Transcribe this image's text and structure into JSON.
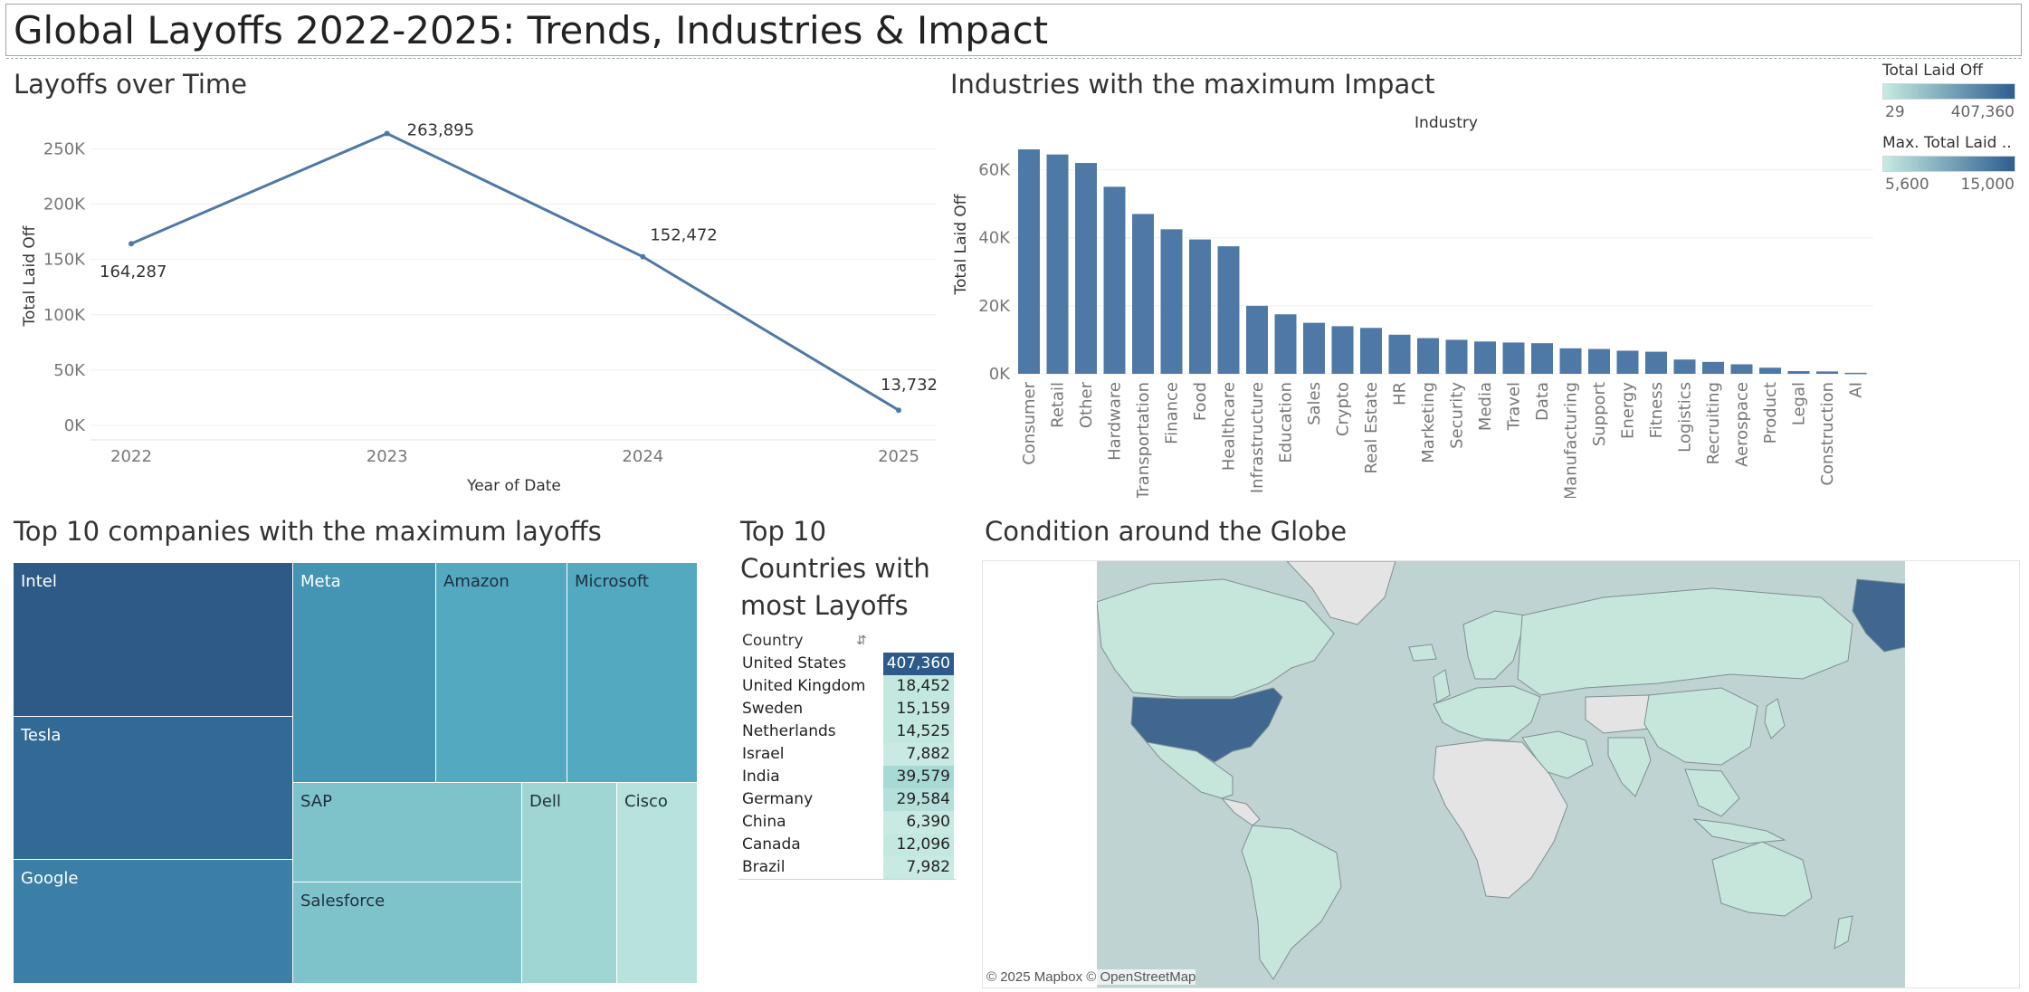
{
  "title": "Global Layoffs 2022-2025: Trends, Industries & Impact",
  "line_chart": {
    "section_title": "Layoffs over Time",
    "chart_data": {
      "type": "line",
      "xlabel": "Year of Date",
      "ylabel": "Total Laid Off",
      "x": [
        "2022",
        "2023",
        "2024",
        "2025"
      ],
      "values": [
        164287,
        263895,
        152472,
        13732
      ],
      "data_labels": [
        "164,287",
        "263,895",
        "152,472",
        "13,732"
      ],
      "y_ticks": [
        "0K",
        "50K",
        "100K",
        "150K",
        "200K",
        "250K"
      ],
      "ylim": [
        0,
        270000
      ],
      "color": "#4e79a7"
    }
  },
  "bar_chart": {
    "section_title": "Industries with the maximum Impact",
    "chart_data": {
      "type": "bar",
      "title": "Industry",
      "ylabel": "Total Laid Off",
      "categories": [
        "Consumer",
        "Retail",
        "Other",
        "Hardware",
        "Transportation",
        "Finance",
        "Food",
        "Healthcare",
        "Infrastructure",
        "Education",
        "Sales",
        "Crypto",
        "Real Estate",
        "HR",
        "Marketing",
        "Security",
        "Media",
        "Travel",
        "Data",
        "Manufacturing",
        "Support",
        "Energy",
        "Fitness",
        "Logistics",
        "Recruiting",
        "Aerospace",
        "Product",
        "Legal",
        "Construction",
        "AI"
      ],
      "values": [
        66000,
        64500,
        62000,
        55000,
        47000,
        42500,
        39500,
        37500,
        20000,
        17500,
        15000,
        14000,
        13500,
        11500,
        10500,
        10000,
        9500,
        9200,
        9000,
        7500,
        7300,
        6800,
        6500,
        4200,
        3500,
        2800,
        1800,
        800,
        700,
        300
      ],
      "y_ticks": [
        "0K",
        "20K",
        "40K",
        "60K"
      ],
      "ylim": [
        0,
        70000
      ],
      "color": "#4e79a7"
    }
  },
  "legend": {
    "total_title": "Total Laid Off",
    "total_min": "29",
    "total_max": "407,360",
    "max_title": "Max. Total Laid ..",
    "max_min": "5,600",
    "max_max": "15,000"
  },
  "treemap": {
    "section_title": "Top 10 companies with the maximum layoffs",
    "cells": [
      {
        "label": "Intel",
        "color": "#2e5a87",
        "text_color": "#ffffff"
      },
      {
        "label": "Tesla",
        "color": "#336a95",
        "text_color": "#ffffff"
      },
      {
        "label": "Google",
        "color": "#3b7ea6",
        "text_color": "#ffffff"
      },
      {
        "label": "Meta",
        "color": "#4494b3",
        "text_color": "#ffffff"
      },
      {
        "label": "Amazon",
        "color": "#52a9c0",
        "text_color": "#1f2f3d"
      },
      {
        "label": "Microsoft",
        "color": "#52a9c0",
        "text_color": "#1f2f3d"
      },
      {
        "label": "SAP",
        "color": "#7fc3ca",
        "text_color": "#1f2f3d"
      },
      {
        "label": "Salesforce",
        "color": "#7fc3ca",
        "text_color": "#1f2f3d"
      },
      {
        "label": "Dell",
        "color": "#9fd6d3",
        "text_color": "#1f2f3d"
      },
      {
        "label": "Cisco",
        "color": "#b8e3dc",
        "text_color": "#1f2f3d"
      }
    ]
  },
  "countries": {
    "section_title_1": "Top 10",
    "section_title_2": "Countries with",
    "section_title_3": "most Layoffs",
    "header": "Country",
    "rows": [
      {
        "name": "United States",
        "value": "407,360",
        "color": "#2d5a8a",
        "text_color": "#ffffff"
      },
      {
        "name": "United Kingdom",
        "value": "18,452",
        "color": "#c3e8e0",
        "text_color": "#222222"
      },
      {
        "name": "Sweden",
        "value": "15,159",
        "color": "#c3e8e0",
        "text_color": "#222222"
      },
      {
        "name": "Netherlands",
        "value": "14,525",
        "color": "#c3e8e0",
        "text_color": "#222222"
      },
      {
        "name": "Israel",
        "value": "7,882",
        "color": "#c8eae3",
        "text_color": "#222222"
      },
      {
        "name": "India",
        "value": "39,579",
        "color": "#a7dad4",
        "text_color": "#222222"
      },
      {
        "name": "Germany",
        "value": "29,584",
        "color": "#b4e0d9",
        "text_color": "#222222"
      },
      {
        "name": "China",
        "value": "6,390",
        "color": "#c8eae3",
        "text_color": "#222222"
      },
      {
        "name": "Canada",
        "value": "12,096",
        "color": "#c3e8e0",
        "text_color": "#222222"
      },
      {
        "name": "Brazil",
        "value": "7,982",
        "color": "#c8eae3",
        "text_color": "#222222"
      }
    ]
  },
  "map": {
    "section_title": "Condition around the Globe",
    "attribution": "© 2025 Mapbox © OpenStreetMap",
    "ocean_color": "#bfd3d3",
    "land_color": "#e4e4e4",
    "low_color": "#c6e6dc",
    "high_color": "#3f6790"
  }
}
